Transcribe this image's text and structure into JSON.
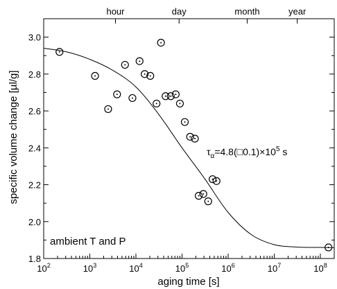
{
  "chart_data": {
    "type": "scatter",
    "title": "",
    "xlabel": "aging time  [s]",
    "ylabel": "specific volume change  [µl/g]",
    "x_scale": "log",
    "xlim": [
      100,
      200000000
    ],
    "ylim": [
      1.8,
      3.1
    ],
    "x_ticks": [
      {
        "value": 100,
        "base": "10",
        "exp": "2"
      },
      {
        "value": 1000,
        "base": "10",
        "exp": "3"
      },
      {
        "value": 10000,
        "base": "10",
        "exp": "4"
      },
      {
        "value": 100000,
        "base": "10",
        "exp": "5"
      },
      {
        "value": 1000000,
        "base": "10",
        "exp": "6"
      },
      {
        "value": 10000000,
        "base": "10",
        "exp": "7"
      },
      {
        "value": 100000000,
        "base": "10",
        "exp": "8"
      }
    ],
    "y_ticks": [
      {
        "value": 1.8,
        "label": "1.8"
      },
      {
        "value": 2.0,
        "label": "2.0"
      },
      {
        "value": 2.2,
        "label": "2.2"
      },
      {
        "value": 2.4,
        "label": "2.4"
      },
      {
        "value": 2.6,
        "label": "2.6"
      },
      {
        "value": 2.8,
        "label": "2.8"
      },
      {
        "value": 3.0,
        "label": "3.0"
      }
    ],
    "top_axis": [
      {
        "value": 3600,
        "label": "hour"
      },
      {
        "value": 86400,
        "label": "day"
      },
      {
        "value": 2592000,
        "label": "month"
      },
      {
        "value": 31536000,
        "label": "year"
      }
    ],
    "series": [
      {
        "marker": "open-circle",
        "points": [
          {
            "x": 220,
            "y": 2.92
          },
          {
            "x": 1300,
            "y": 2.79
          },
          {
            "x": 2500,
            "y": 2.61
          },
          {
            "x": 3900,
            "y": 2.69
          },
          {
            "x": 5800,
            "y": 2.85
          },
          {
            "x": 8400,
            "y": 2.67
          },
          {
            "x": 12000,
            "y": 2.87
          },
          {
            "x": 15500,
            "y": 2.8
          },
          {
            "x": 20500,
            "y": 2.79
          },
          {
            "x": 28000,
            "y": 2.64
          },
          {
            "x": 35000,
            "y": 2.97
          },
          {
            "x": 44000,
            "y": 2.68
          },
          {
            "x": 57000,
            "y": 2.68
          },
          {
            "x": 73000,
            "y": 2.69
          },
          {
            "x": 90000,
            "y": 2.64
          },
          {
            "x": 115000,
            "y": 2.54
          },
          {
            "x": 150000,
            "y": 2.46
          },
          {
            "x": 190000,
            "y": 2.45
          },
          {
            "x": 230000,
            "y": 2.14
          },
          {
            "x": 290000,
            "y": 2.15
          },
          {
            "x": 370000,
            "y": 2.11
          },
          {
            "x": 460000,
            "y": 2.23
          },
          {
            "x": 560000,
            "y": 2.22
          },
          {
            "x": 150000000,
            "y": 1.86
          }
        ]
      }
    ],
    "fit_curve": {
      "points": [
        {
          "x": 100,
          "y": 2.94
        },
        {
          "x": 316,
          "y": 2.92
        },
        {
          "x": 1000,
          "y": 2.88
        },
        {
          "x": 3162,
          "y": 2.82
        },
        {
          "x": 10000,
          "y": 2.73
        },
        {
          "x": 31623,
          "y": 2.58
        },
        {
          "x": 100000,
          "y": 2.4
        },
        {
          "x": 316228,
          "y": 2.23
        },
        {
          "x": 1000000,
          "y": 2.05
        },
        {
          "x": 3162278,
          "y": 1.93
        },
        {
          "x": 10000000,
          "y": 1.875
        },
        {
          "x": 31622777,
          "y": 1.862
        },
        {
          "x": 100000000,
          "y": 1.86
        },
        {
          "x": 200000000,
          "y": 1.859
        }
      ]
    },
    "annotations": {
      "tau_symbol": "τ",
      "tau_subscript": "α",
      "tau_equation": "=4.8(□0.1)×10",
      "tau_exponent": "5",
      "tau_unit": " s",
      "conditions": "ambient T and P"
    }
  }
}
